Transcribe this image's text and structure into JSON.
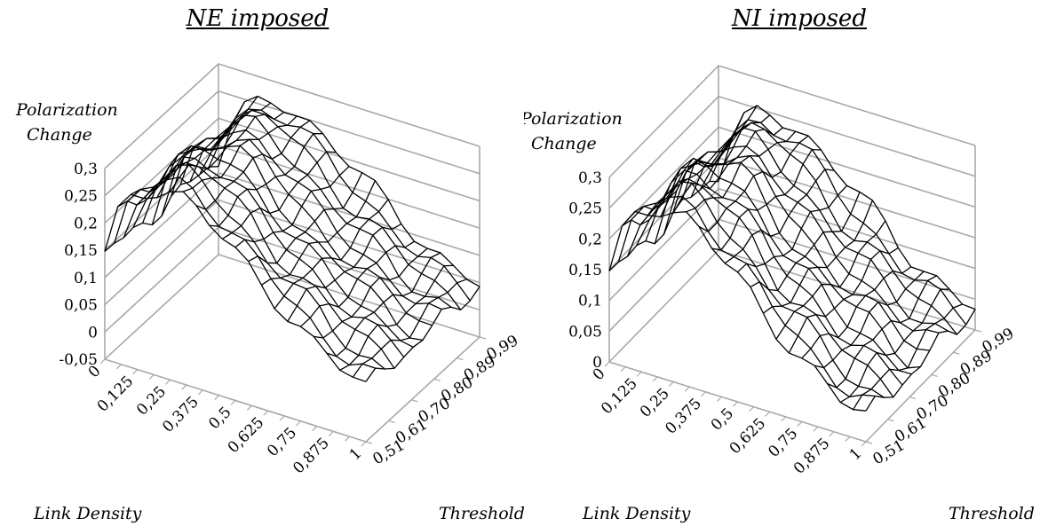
{
  "chart_data": [
    {
      "type": "surface",
      "title": "NE imposed",
      "zlabel_line1": "Polarization",
      "zlabel_line2": "Change",
      "xlabel": "Link Density",
      "ylabel": "Threshold",
      "z_ticks": [
        "0,3",
        "0,25",
        "0,2",
        "0,15",
        "0,1",
        "0,05",
        "0",
        "-0,05"
      ],
      "x_ticks": [
        "0",
        "0,125",
        "0,25",
        "0,375",
        "0,5",
        "0,625",
        "0,75",
        "0,875",
        "1"
      ],
      "y_ticks": [
        "0,51",
        "0,61",
        "0,70",
        "0,80",
        "0,89",
        "0,99"
      ],
      "zlim": [
        -0.05,
        0.3
      ],
      "grid": true,
      "x_profile": [
        0.14,
        0.22,
        0.26,
        0.28,
        0.295,
        0.3,
        0.295,
        0.28,
        0.26,
        0.24,
        0.22,
        0.2,
        0.18,
        0.16,
        0.14,
        0.12,
        0.1,
        0.085,
        0.07,
        0.06,
        0.05
      ]
    },
    {
      "type": "surface",
      "title": "NI imposed",
      "zlabel_line1": "Polarization",
      "zlabel_line2": "Change",
      "xlabel": "Link Density",
      "ylabel": "Threshold",
      "z_ticks": [
        "0,3",
        "0,25",
        "0,2",
        "0,15",
        "0,1",
        "0,05",
        "0"
      ],
      "x_ticks": [
        "0",
        "0,125",
        "0,25",
        "0,375",
        "0,5",
        "0,625",
        "0,75",
        "0,875",
        "1"
      ],
      "y_ticks": [
        "0,51",
        "0,61",
        "0,70",
        "0,80",
        "0,89",
        "0,99"
      ],
      "zlim": [
        0,
        0.3
      ],
      "grid": true,
      "x_profile": [
        0.14,
        0.21,
        0.25,
        0.27,
        0.28,
        0.28,
        0.275,
        0.26,
        0.24,
        0.22,
        0.2,
        0.18,
        0.16,
        0.14,
        0.12,
        0.1,
        0.085,
        0.07,
        0.055,
        0.045,
        0.04
      ]
    }
  ]
}
